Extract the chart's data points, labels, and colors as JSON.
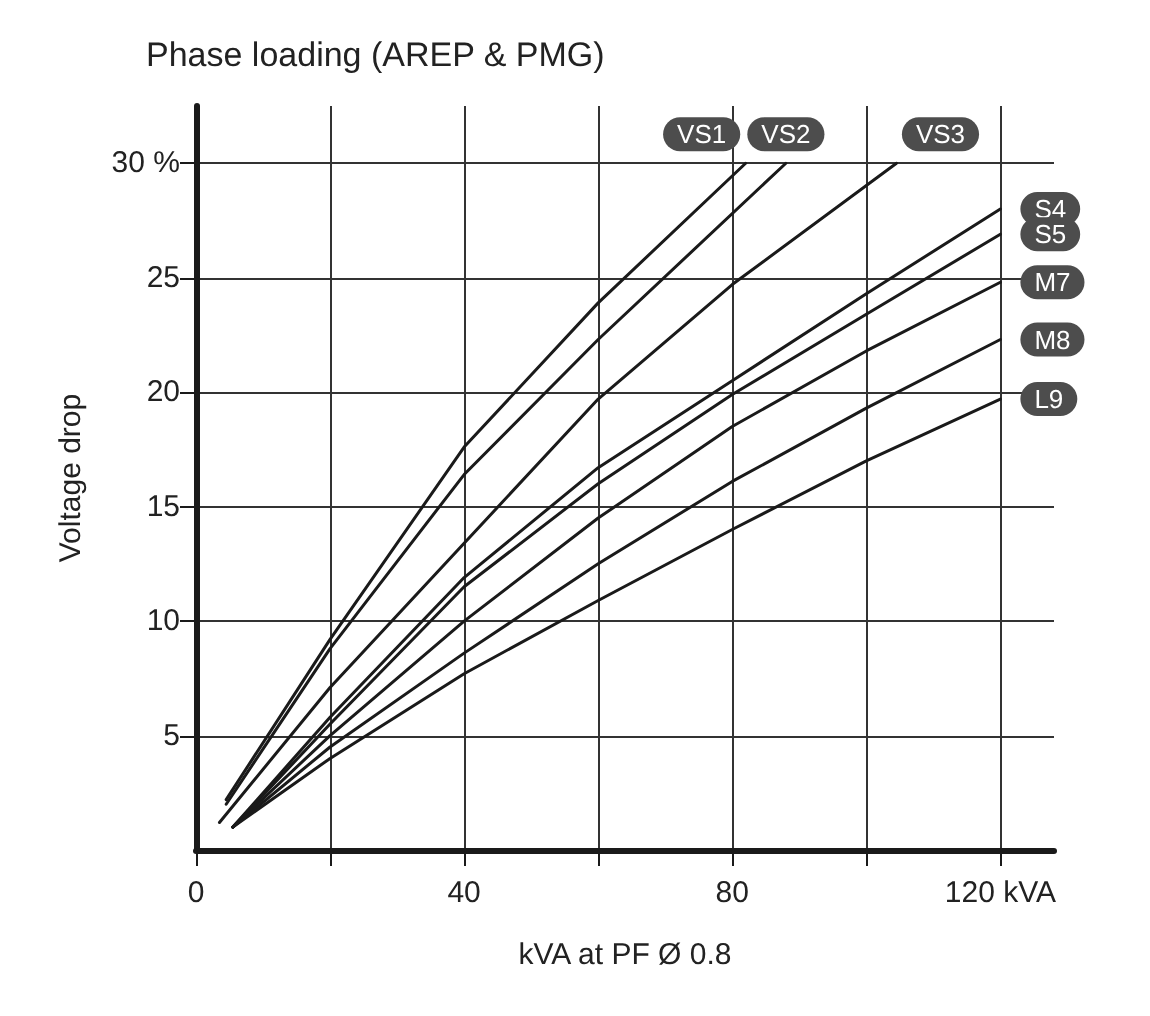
{
  "chart_data": {
    "type": "line",
    "title": "Phase loading (AREP & PMG)",
    "xlabel": "kVA at PF Ø 0.8",
    "ylabel": "Voltage drop",
    "xlim": [
      0,
      128
    ],
    "ylim": [
      0,
      32.5
    ],
    "xticks": [
      0,
      {
        "value": 20,
        "label": null
      },
      40,
      {
        "value": 60,
        "label": null
      },
      80,
      {
        "value": 100,
        "label": null
      },
      {
        "value": 120,
        "label": "120 kVA"
      }
    ],
    "yticks": [
      5,
      10,
      15,
      20,
      25,
      {
        "value": 30,
        "label": "30 %"
      }
    ],
    "grid": true,
    "legend": false,
    "marker": "none",
    "line_style": "solid",
    "series": [
      {
        "name": "VS1",
        "color": "#1a1a1a",
        "x": [
          4.5,
          20,
          40,
          60,
          82
        ],
        "values": [
          2.2,
          9.2,
          17.6,
          23.9,
          30
        ]
      },
      {
        "name": "VS2",
        "color": "#1a1a1a",
        "x": [
          4.5,
          20,
          40,
          60,
          88
        ],
        "values": [
          2.0,
          8.8,
          16.4,
          22.3,
          30
        ]
      },
      {
        "name": "VS3",
        "color": "#1a1a1a",
        "x": [
          3.5,
          20,
          40,
          60,
          80,
          104.5
        ],
        "values": [
          1.2,
          7.1,
          13.4,
          19.7,
          24.7,
          30
        ]
      },
      {
        "name": "S4",
        "color": "#1a1a1a",
        "x": [
          5.5,
          20,
          40,
          60,
          80,
          100,
          120
        ],
        "values": [
          1.0,
          5.8,
          11.9,
          16.7,
          20.5,
          24.3,
          28.0
        ]
      },
      {
        "name": "S5",
        "color": "#1a1a1a",
        "x": [
          5.5,
          20,
          40,
          60,
          80,
          100,
          120
        ],
        "values": [
          1.0,
          5.5,
          11.5,
          16.0,
          19.9,
          23.4,
          26.9
        ]
      },
      {
        "name": "M7",
        "color": "#1a1a1a",
        "x": [
          5.5,
          20,
          40,
          60,
          80,
          100,
          120
        ],
        "values": [
          1.0,
          5.0,
          10.0,
          14.5,
          18.5,
          21.8,
          24.8
        ]
      },
      {
        "name": "M8",
        "color": "#1a1a1a",
        "x": [
          5.5,
          20,
          40,
          60,
          80,
          100,
          120
        ],
        "values": [
          1.0,
          4.5,
          8.6,
          12.5,
          16.1,
          19.3,
          22.3
        ]
      },
      {
        "name": "L9",
        "color": "#1a1a1a",
        "x": [
          5.5,
          20,
          40,
          60,
          80,
          100,
          120
        ],
        "values": [
          1.0,
          4.0,
          7.7,
          10.9,
          14.0,
          17.0,
          19.7
        ]
      }
    ]
  }
}
